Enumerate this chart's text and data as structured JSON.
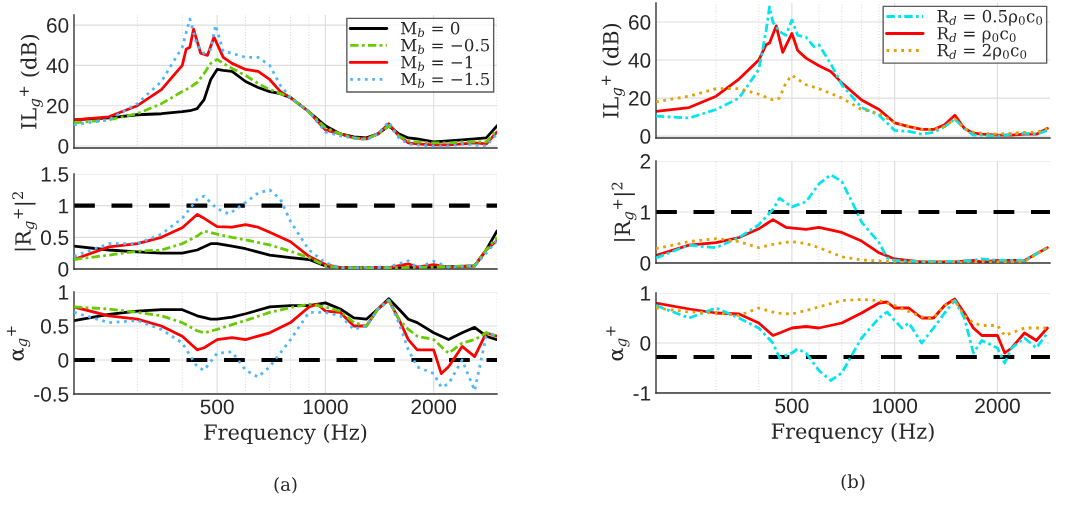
{
  "chart_data": [
    {
      "type": "line",
      "ylabel": "IL$_{g}$$^{+}$ (dB)",
      "xlim": [
        200,
        3000
      ],
      "ylim": [
        -1,
        65
      ],
      "log": "x",
      "grid": true,
      "legend": "top right",
      "tick_labels": "y",
      "xticks": [
        {
          "value": 300,
          "label": null
        },
        {
          "value": 400,
          "label": null
        },
        500,
        {
          "value": 600,
          "label": null
        },
        {
          "value": 700,
          "label": null
        },
        {
          "value": 800,
          "label": null
        },
        {
          "value": 900,
          "label": null
        },
        1000,
        2000,
        {
          "value": 3000,
          "label": null
        }
      ],
      "yticks": [
        0,
        20,
        40,
        60
      ],
      "series": [
        {
          "name": "M$_{b}$ = 0",
          "color": "#000000",
          "line_style": "solid",
          "x": [
            200,
            250,
            300,
            350,
            400,
            420,
            440,
            460,
            480,
            500,
            520,
            550,
            600,
            650,
            700,
            750,
            800,
            900,
            1000,
            1100,
            1200,
            1300,
            1400,
            1500,
            1600,
            1700,
            1800,
            2000,
            2200,
            2400,
            2600,
            2800,
            3000
          ],
          "values": [
            13,
            14,
            15.5,
            16,
            17,
            17.5,
            18.5,
            23,
            33,
            38,
            37.5,
            37,
            32,
            29,
            27,
            26,
            24,
            17,
            10,
            6,
            4.5,
            4,
            6,
            10,
            6,
            4,
            3.5,
            2,
            2.5,
            3,
            3.5,
            4,
            10
          ]
        },
        {
          "name": "M$_{b}$ = −0.5",
          "color": "#66cc00",
          "line_style": "dashdot",
          "x": [
            200,
            250,
            300,
            350,
            400,
            420,
            440,
            460,
            480,
            500,
            520,
            550,
            600,
            650,
            700,
            750,
            800,
            900,
            1000,
            1100,
            1200,
            1300,
            1400,
            1500,
            1600,
            1700,
            1800,
            2000,
            2200,
            2400,
            2600,
            2800,
            3000
          ],
          "values": [
            11.5,
            13,
            16,
            21,
            27,
            29,
            31.5,
            36,
            41,
            43,
            41,
            38.5,
            35,
            31,
            28,
            26,
            24,
            17,
            9,
            6,
            4,
            3.5,
            6,
            10,
            5,
            2.5,
            2,
            1.5,
            1.5,
            2,
            2,
            2,
            8
          ]
        },
        {
          "name": "M$_{b}$ = −1",
          "color": "#ff0000",
          "line_style": "solid",
          "x": [
            200,
            250,
            300,
            350,
            400,
            410,
            420,
            430,
            450,
            470,
            490,
            520,
            550,
            600,
            650,
            700,
            750,
            800,
            900,
            1000,
            1100,
            1200,
            1300,
            1400,
            1500,
            1600,
            1700,
            1800,
            2000,
            2200,
            2400,
            2600,
            2800,
            3000
          ],
          "values": [
            13,
            14.5,
            20,
            28,
            40,
            48,
            49,
            58,
            46,
            45,
            54,
            44,
            41,
            38,
            37,
            33,
            27,
            24,
            17,
            8,
            6,
            4,
            3.5,
            6,
            11,
            5,
            1.5,
            1,
            0.5,
            0.5,
            1,
            1.5,
            1,
            7
          ]
        },
        {
          "name": "M$_{b}$ = −1.5",
          "color": "#4db8ff",
          "line_style": "dotted",
          "x": [
            200,
            250,
            300,
            350,
            400,
            420,
            440,
            460,
            480,
            495,
            520,
            550,
            600,
            650,
            700,
            750,
            800,
            900,
            1000,
            1100,
            1200,
            1300,
            1400,
            1500,
            1600,
            1700,
            1800,
            2000,
            2200,
            2400,
            2600,
            2800,
            3000
          ],
          "values": [
            10.5,
            13,
            21,
            32,
            49,
            63,
            50,
            46,
            48,
            60,
            47,
            46,
            44,
            44,
            40,
            30,
            24,
            17,
            7,
            5,
            4,
            3,
            6,
            12,
            4,
            1,
            0.5,
            0,
            0,
            1,
            0.5,
            0,
            6
          ]
        }
      ]
    },
    {
      "type": "line",
      "ylabel": "|R$_{g}$$^{+}$|$^{2}$",
      "xlim": [
        200,
        3000
      ],
      "ylim": [
        0,
        1.5
      ],
      "log": "x",
      "grid": true,
      "tick_labels": "y",
      "xticks": [
        {
          "value": 300,
          "label": null
        },
        {
          "value": 400,
          "label": null
        },
        500,
        {
          "value": 600,
          "label": null
        },
        {
          "value": 700,
          "label": null
        },
        {
          "value": 800,
          "label": null
        },
        {
          "value": 900,
          "label": null
        },
        1000,
        2000,
        {
          "value": 3000,
          "label": null
        }
      ],
      "yticks": [
        0,
        0.5,
        1,
        1.5
      ],
      "ref_lines": [
        {
          "axis": "y",
          "value": 1,
          "color": "#000000",
          "line_style": "dashed"
        }
      ],
      "series": [
        {
          "color": "#000000",
          "line_style": "solid",
          "x": [
            200,
            250,
            300,
            350,
            400,
            440,
            480,
            500,
            550,
            600,
            700,
            800,
            900,
            1000,
            1100,
            1500,
            2000,
            2600,
            2800,
            3000
          ],
          "values": [
            0.36,
            0.3,
            0.27,
            0.25,
            0.25,
            0.3,
            0.4,
            0.4,
            0.36,
            0.32,
            0.22,
            0.18,
            0.15,
            0.05,
            0.02,
            0.02,
            0.03,
            0.05,
            0.3,
            0.6
          ]
        },
        {
          "color": "#66cc00",
          "line_style": "dashdot",
          "x": [
            200,
            250,
            300,
            350,
            400,
            440,
            460,
            500,
            550,
            600,
            700,
            800,
            900,
            1000,
            1100,
            1500,
            2000,
            2600,
            2800,
            3000
          ],
          "values": [
            0.15,
            0.22,
            0.28,
            0.3,
            0.4,
            0.52,
            0.6,
            0.55,
            0.5,
            0.46,
            0.38,
            0.28,
            0.18,
            0.05,
            0.02,
            0.02,
            0.03,
            0.05,
            0.3,
            0.5
          ]
        },
        {
          "color": "#ff0000",
          "line_style": "solid",
          "x": [
            200,
            250,
            300,
            350,
            400,
            440,
            460,
            500,
            550,
            600,
            650,
            700,
            800,
            900,
            1000,
            1100,
            1500,
            1700,
            1800,
            2000,
            2200,
            2600,
            2800,
            3000
          ],
          "values": [
            0.15,
            0.35,
            0.4,
            0.5,
            0.65,
            0.86,
            0.8,
            0.67,
            0.66,
            0.7,
            0.66,
            0.58,
            0.43,
            0.2,
            0.07,
            0.02,
            0.02,
            0.08,
            0.03,
            0.07,
            0.03,
            0.05,
            0.3,
            0.45
          ]
        },
        {
          "color": "#4db8ff",
          "line_style": "dotted",
          "x": [
            200,
            250,
            300,
            350,
            400,
            440,
            460,
            500,
            540,
            600,
            650,
            700,
            750,
            800,
            900,
            1000,
            1100,
            1500,
            1700,
            1800,
            2000,
            2200,
            2600,
            2800,
            3000
          ],
          "values": [
            0.2,
            0.4,
            0.4,
            0.55,
            0.8,
            1.1,
            1.15,
            0.95,
            0.87,
            1.05,
            1.2,
            1.25,
            1.1,
            0.75,
            0.3,
            0.1,
            0.02,
            0.03,
            0.13,
            0.02,
            0.12,
            0.03,
            0.05,
            0.25,
            0.45
          ]
        }
      ]
    },
    {
      "type": "line",
      "ylabel": "α$_{g}$$^{+}$",
      "xlabel": "Frequency (Hz)",
      "xlim": [
        200,
        3000
      ],
      "ylim": [
        -0.5,
        1
      ],
      "log": "x",
      "grid": true,
      "xticks": [
        {
          "value": 300,
          "label": null
        },
        {
          "value": 400,
          "label": null
        },
        500,
        {
          "value": 600,
          "label": null
        },
        {
          "value": 700,
          "label": null
        },
        {
          "value": 800,
          "label": null
        },
        {
          "value": 900,
          "label": null
        },
        1000,
        2000,
        {
          "value": 3000,
          "label": null
        }
      ],
      "yticks": [
        -0.5,
        0,
        0.5,
        1
      ],
      "ref_lines": [
        {
          "axis": "y",
          "value": 0,
          "color": "#000000",
          "line_style": "dashed"
        }
      ],
      "annotations": [
        "(a)"
      ],
      "series": [
        {
          "color": "#000000",
          "line_style": "solid",
          "x": [
            200,
            250,
            300,
            350,
            400,
            440,
            480,
            500,
            550,
            600,
            700,
            800,
            900,
            1000,
            1100,
            1200,
            1300,
            1400,
            1500,
            1600,
            1700,
            1800,
            2000,
            2200,
            2400,
            2600,
            2800,
            3000
          ],
          "values": [
            0.58,
            0.67,
            0.72,
            0.74,
            0.74,
            0.65,
            0.6,
            0.6,
            0.63,
            0.68,
            0.78,
            0.8,
            0.8,
            0.84,
            0.75,
            0.62,
            0.6,
            0.75,
            0.9,
            0.75,
            0.6,
            0.55,
            0.4,
            0.3,
            0.4,
            0.48,
            0.35,
            0.3
          ]
        },
        {
          "color": "#66cc00",
          "line_style": "dashdot",
          "x": [
            200,
            250,
            300,
            350,
            400,
            440,
            460,
            500,
            550,
            600,
            700,
            800,
            900,
            1000,
            1100,
            1200,
            1300,
            1400,
            1500,
            1600,
            1700,
            1800,
            2000,
            2200,
            2400,
            2600,
            2800,
            3000
          ],
          "values": [
            0.78,
            0.75,
            0.7,
            0.65,
            0.55,
            0.43,
            0.4,
            0.45,
            0.52,
            0.58,
            0.7,
            0.77,
            0.82,
            0.78,
            0.72,
            0.55,
            0.5,
            0.75,
            0.88,
            0.6,
            0.45,
            0.35,
            0.3,
            0.1,
            0.25,
            0.3,
            0.4,
            0.35
          ]
        },
        {
          "color": "#ff0000",
          "line_style": "solid",
          "x": [
            200,
            250,
            300,
            350,
            400,
            440,
            460,
            500,
            550,
            600,
            700,
            800,
            900,
            950,
            1000,
            1100,
            1200,
            1300,
            1400,
            1500,
            1600,
            1700,
            1800,
            2000,
            2100,
            2200,
            2400,
            2600,
            2800,
            3000
          ],
          "values": [
            0.78,
            0.65,
            0.6,
            0.5,
            0.35,
            0.15,
            0.18,
            0.3,
            0.33,
            0.3,
            0.4,
            0.55,
            0.78,
            0.82,
            0.72,
            0.7,
            0.5,
            0.5,
            0.75,
            0.88,
            0.6,
            0.3,
            0.15,
            0.15,
            -0.2,
            -0.1,
            0.2,
            0.05,
            0.4,
            0.35
          ]
        },
        {
          "color": "#4db8ff",
          "line_style": "dotted",
          "x": [
            200,
            250,
            300,
            350,
            400,
            440,
            460,
            500,
            550,
            600,
            650,
            700,
            800,
            900,
            1000,
            1100,
            1200,
            1300,
            1400,
            1500,
            1600,
            1700,
            1800,
            2000,
            2100,
            2200,
            2400,
            2600,
            2800,
            3000
          ],
          "values": [
            0.7,
            0.55,
            0.58,
            0.45,
            0.25,
            -0.1,
            -0.15,
            0.1,
            0.12,
            -0.15,
            -0.25,
            -0.1,
            0.3,
            0.7,
            0.7,
            0.65,
            0.45,
            0.5,
            0.75,
            0.88,
            0.55,
            0.15,
            -0.1,
            -0.2,
            -0.4,
            -0.35,
            0,
            -0.45,
            0.35,
            0.4
          ]
        }
      ]
    },
    {
      "type": "line",
      "ylabel": "IL$_{g}$$^{+}$ (dB)",
      "xlim": [
        200,
        2850
      ],
      "ylim": [
        -1,
        70
      ],
      "log": "x",
      "grid": true,
      "legend": "top right",
      "tick_labels": "y",
      "xticks": [
        {
          "value": 300,
          "label": null
        },
        {
          "value": 400,
          "label": null
        },
        500,
        {
          "value": 600,
          "label": null
        },
        {
          "value": 700,
          "label": null
        },
        {
          "value": 800,
          "label": null
        },
        {
          "value": 900,
          "label": null
        },
        1000,
        2000
      ],
      "yticks": [
        0,
        20,
        40,
        60
      ],
      "series": [
        {
          "name": "R$_{d}$ = 0.5ρ$_{0}$c$_{0}$",
          "color": "#00e5ee",
          "line_style": "dashdot",
          "x": [
            200,
            250,
            300,
            350,
            400,
            420,
            430,
            440,
            460,
            480,
            500,
            520,
            550,
            580,
            600,
            650,
            700,
            800,
            900,
            1000,
            1100,
            1200,
            1300,
            1400,
            1500,
            1600,
            1700,
            1800,
            2000,
            2200,
            2400,
            2600,
            2800
          ],
          "values": [
            10.5,
            9.5,
            14,
            20,
            35,
            55,
            68,
            60,
            55,
            53,
            61,
            53,
            52,
            47,
            48,
            38,
            27,
            15,
            11,
            3,
            2.5,
            1,
            2,
            5,
            9,
            4,
            0.5,
            0.5,
            0,
            1,
            1.5,
            1,
            3
          ]
        },
        {
          "name": "R$_{d}$ = ρ$_{0}$c$_{0}$",
          "color": "#ff0000",
          "line_style": "solid",
          "x": [
            200,
            250,
            300,
            350,
            400,
            420,
            430,
            450,
            470,
            500,
            520,
            550,
            600,
            650,
            700,
            800,
            900,
            1000,
            1100,
            1200,
            1300,
            1400,
            1500,
            1600,
            1700,
            1800,
            2000,
            2200,
            2400,
            2600,
            2800
          ],
          "values": [
            13,
            15,
            21,
            30,
            40,
            48,
            49,
            58,
            44,
            54,
            45,
            41,
            37,
            34,
            28,
            19,
            14,
            7,
            5,
            3.5,
            3.5,
            6,
            11,
            4,
            1.5,
            1,
            0.5,
            0.5,
            1,
            1,
            4
          ]
        },
        {
          "name": "R$_{d}$ = 2ρ$_{0}$c$_{0}$",
          "color": "#e8a000",
          "line_style": "dotted",
          "x": [
            200,
            250,
            300,
            350,
            400,
            440,
            460,
            480,
            500,
            550,
            600,
            700,
            800,
            900,
            1000,
            1100,
            1200,
            1300,
            1400,
            1500,
            1600,
            1700,
            1800,
            2000,
            2200,
            2400,
            2600,
            2800
          ],
          "values": [
            18,
            21,
            25,
            25,
            22,
            19,
            20,
            28,
            32,
            27,
            25,
            20,
            14,
            12,
            7,
            5,
            3.5,
            3.5,
            5,
            9,
            4,
            2,
            1.5,
            1,
            1.5,
            2,
            2,
            4
          ]
        }
      ]
    },
    {
      "type": "line",
      "ylabel": "|R$_{g}$$^{+}$|$^{2}$",
      "xlim": [
        200,
        2850
      ],
      "ylim": [
        0,
        2
      ],
      "log": "x",
      "grid": true,
      "tick_labels": "y",
      "xticks": [
        {
          "value": 300,
          "label": null
        },
        {
          "value": 400,
          "label": null
        },
        500,
        {
          "value": 600,
          "label": null
        },
        {
          "value": 700,
          "label": null
        },
        {
          "value": 800,
          "label": null
        },
        {
          "value": 900,
          "label": null
        },
        1000,
        2000
      ],
      "yticks": [
        0,
        1,
        2
      ],
      "ref_lines": [
        {
          "axis": "y",
          "value": 1,
          "color": "#000000",
          "line_style": "dashed"
        }
      ],
      "series": [
        {
          "color": "#00e5ee",
          "line_style": "dashdot",
          "x": [
            200,
            250,
            300,
            350,
            400,
            440,
            460,
            500,
            550,
            600,
            650,
            700,
            750,
            800,
            900,
            950,
            1000,
            1200,
            1500,
            1700,
            1800,
            2000,
            2400,
            2800
          ],
          "values": [
            0.1,
            0.35,
            0.3,
            0.5,
            0.75,
            1.05,
            1.27,
            1.1,
            1.2,
            1.55,
            1.73,
            1.6,
            1.2,
            0.8,
            0.4,
            0.1,
            0.05,
            0.03,
            0.03,
            0.05,
            0.08,
            0.05,
            0.05,
            0.3
          ]
        },
        {
          "color": "#ff0000",
          "line_style": "solid",
          "x": [
            200,
            250,
            300,
            350,
            400,
            440,
            480,
            550,
            600,
            700,
            800,
            900,
            1000,
            1200,
            1500,
            1700,
            1800,
            2000,
            2400,
            2800
          ],
          "values": [
            0.15,
            0.35,
            0.4,
            0.5,
            0.67,
            0.85,
            0.7,
            0.66,
            0.7,
            0.6,
            0.43,
            0.2,
            0.08,
            0.02,
            0.02,
            0.05,
            0.02,
            0.05,
            0.05,
            0.3
          ]
        },
        {
          "color": "#e8a000",
          "line_style": "dotted",
          "x": [
            200,
            250,
            300,
            350,
            400,
            450,
            500,
            550,
            600,
            700,
            800,
            1000,
            1500,
            2000,
            2400,
            2800
          ],
          "values": [
            0.28,
            0.42,
            0.48,
            0.42,
            0.3,
            0.38,
            0.42,
            0.38,
            0.3,
            0.12,
            0.06,
            0.02,
            0.01,
            0.02,
            0.03,
            0.3
          ]
        }
      ]
    },
    {
      "type": "line",
      "ylabel": "α$_{g}$$^{+}$",
      "xlabel": "Frequency (Hz)",
      "xlim": [
        200,
        2850
      ],
      "ylim": [
        -1,
        1
      ],
      "log": "x",
      "grid": true,
      "xticks": [
        {
          "value": 300,
          "label": null
        },
        {
          "value": 400,
          "label": null
        },
        500,
        {
          "value": 600,
          "label": null
        },
        {
          "value": 700,
          "label": null
        },
        {
          "value": 800,
          "label": null
        },
        {
          "value": 900,
          "label": null
        },
        1000,
        2000
      ],
      "yticks": [
        -1,
        0,
        1
      ],
      "ref_lines": [
        {
          "axis": "y",
          "value": -0.28,
          "color": "#000000",
          "line_style": "dashed"
        }
      ],
      "annotations": [
        "(b)"
      ],
      "series": [
        {
          "color": "#00e5ee",
          "line_style": "dashdot",
          "x": [
            200,
            250,
            300,
            350,
            400,
            440,
            460,
            500,
            520,
            550,
            600,
            650,
            700,
            800,
            900,
            950,
            1000,
            1050,
            1100,
            1200,
            1300,
            1400,
            1500,
            1600,
            1700,
            1800,
            2000,
            2100,
            2200,
            2400,
            2600,
            2800
          ],
          "values": [
            0.75,
            0.5,
            0.7,
            0.5,
            0.3,
            0,
            -0.3,
            -0.2,
            -0.12,
            -0.2,
            -0.55,
            -0.75,
            -0.6,
            0.1,
            0.5,
            0.62,
            0.45,
            0.3,
            0.4,
            0,
            0.3,
            0.6,
            0.85,
            0.5,
            -0.2,
            0.05,
            -0.1,
            -0.4,
            -0.1,
            0.1,
            -0.1,
            0.2
          ]
        },
        {
          "color": "#ff0000",
          "line_style": "solid",
          "x": [
            200,
            250,
            300,
            350,
            400,
            440,
            460,
            500,
            550,
            600,
            700,
            800,
            900,
            950,
            1000,
            1100,
            1200,
            1300,
            1400,
            1500,
            1600,
            1700,
            1800,
            2000,
            2100,
            2200,
            2400,
            2600,
            2800
          ],
          "values": [
            0.8,
            0.68,
            0.6,
            0.58,
            0.4,
            0.15,
            0.2,
            0.3,
            0.33,
            0.3,
            0.4,
            0.6,
            0.8,
            0.82,
            0.7,
            0.7,
            0.5,
            0.5,
            0.75,
            0.88,
            0.6,
            0.3,
            0.15,
            0.15,
            -0.2,
            -0.1,
            0.2,
            0.05,
            0.3
          ]
        },
        {
          "color": "#e8a000",
          "line_style": "dotted",
          "x": [
            200,
            250,
            300,
            350,
            400,
            450,
            500,
            550,
            600,
            700,
            800,
            900,
            1000,
            1200,
            1300,
            1400,
            1500,
            1600,
            1700,
            1800,
            2000,
            2100,
            2200,
            2400,
            2800
          ],
          "values": [
            0.7,
            0.62,
            0.6,
            0.55,
            0.7,
            0.6,
            0.58,
            0.65,
            0.72,
            0.85,
            0.87,
            0.85,
            0.75,
            0.52,
            0.5,
            0.75,
            0.85,
            0.55,
            0.4,
            0.35,
            0.35,
            0.15,
            0.2,
            0.3,
            0.3
          ]
        }
      ]
    }
  ]
}
